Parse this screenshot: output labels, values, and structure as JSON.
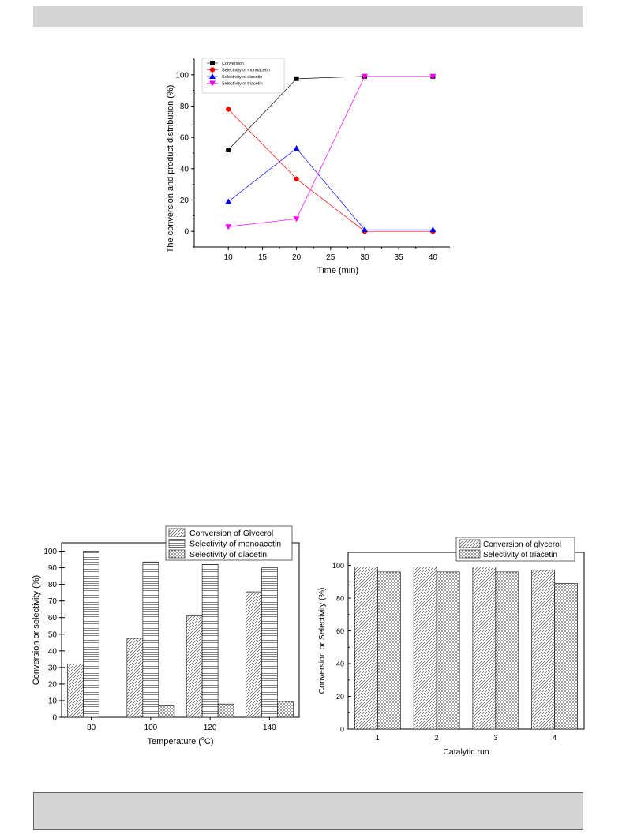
{
  "chart_data": [
    {
      "type": "line",
      "title": "",
      "xlabel": "Time (min)",
      "ylabel": "The conversion and product distribution (%)",
      "xlim": [
        5,
        42.5
      ],
      "ylim": [
        -10,
        110
      ],
      "x_ticks": [
        "10",
        "15",
        "20",
        "25",
        "30",
        "35",
        "40"
      ],
      "y_ticks": [
        "0",
        "20",
        "40",
        "60",
        "80",
        "100"
      ],
      "x": [
        10,
        20,
        30,
        40
      ],
      "legend": "top-left",
      "series": [
        {
          "name": "Conversion",
          "values": [
            52,
            97.5,
            99,
            99
          ],
          "color": "#000000",
          "marker": "square"
        },
        {
          "name": "Selectivity of monoacetin",
          "values": [
            78,
            33.5,
            0,
            0
          ],
          "color": "#ff0000",
          "marker": "circle"
        },
        {
          "name": "Selectivity of diacetin",
          "values": [
            19,
            53,
            1,
            1
          ],
          "color": "#0000ff",
          "marker": "triangle-up"
        },
        {
          "name": "Selectivity of triacetin",
          "values": [
            3,
            8,
            99,
            99
          ],
          "color": "#ff00ff",
          "marker": "triangle-down"
        }
      ]
    },
    {
      "type": "bar",
      "title": "",
      "xlabel_main": "Temperature (",
      "xlabel_sup": "o",
      "xlabel_tail": "C)",
      "ylabel": "Conversion or selectivity (%)",
      "ylim": [
        0,
        105
      ],
      "y_ticks": [
        "0",
        "10",
        "20",
        "30",
        "40",
        "50",
        "60",
        "70",
        "80",
        "90",
        "100"
      ],
      "categories": [
        "80",
        "100",
        "120",
        "140"
      ],
      "legend": "top-right",
      "series": [
        {
          "name": "Conversion of Glycerol",
          "values": [
            32,
            47.5,
            61,
            75.5
          ],
          "pattern": "diagonal"
        },
        {
          "name": "Selectivity of monoacetin",
          "values": [
            100,
            93.5,
            92,
            90
          ],
          "pattern": "horizontal"
        },
        {
          "name": "Selectivity of diacetin",
          "values": [
            null,
            7,
            8,
            9.5
          ],
          "pattern": "crosshatch"
        }
      ]
    },
    {
      "type": "bar",
      "title": "",
      "xlabel": "Catalytic run",
      "ylabel": "Conversion or Selectivity (%)",
      "ylim": [
        0,
        108
      ],
      "y_ticks": [
        "0",
        "20",
        "40",
        "60",
        "80",
        "100"
      ],
      "categories": [
        "1",
        "2",
        "3",
        "4"
      ],
      "legend": "top-right",
      "series": [
        {
          "name": "Conversion of glycerol",
          "values": [
            99,
            99,
            99,
            97
          ],
          "pattern": "diagonal"
        },
        {
          "name": "Selectivity of triacetin",
          "values": [
            96,
            96,
            96,
            89
          ],
          "pattern": "crosshatch"
        }
      ]
    }
  ]
}
